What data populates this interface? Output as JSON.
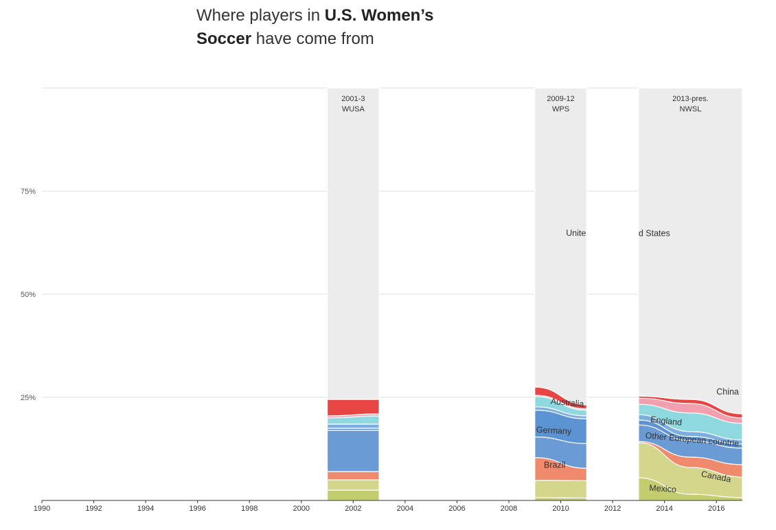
{
  "title": {
    "part1": "Where players in ",
    "bold1": "U.S. Women’s",
    "bold2": "Soccer",
    "part2": " have come from"
  },
  "chart_data": {
    "type": "area",
    "title": "Where players in U.S. Women’s Soccer have come from",
    "xlabel": "",
    "ylabel": "",
    "xlim": [
      1990,
      2017
    ],
    "ylim": [
      0,
      100
    ],
    "x_ticks": [
      "1990",
      "1992",
      "1994",
      "1996",
      "1998",
      "2000",
      "2002",
      "2004",
      "2006",
      "2008",
      "2010",
      "2012",
      "2014",
      "2016"
    ],
    "y_ticks": [
      {
        "value": 25,
        "label": "25%"
      },
      {
        "value": 50,
        "label": "50%"
      },
      {
        "value": 75,
        "label": "75%"
      }
    ],
    "eras": [
      {
        "start": 2001,
        "end": 2003,
        "years": "2001-3",
        "league": "WUSA"
      },
      {
        "start": 2009,
        "end": 2011,
        "years": "2009-12",
        "league": "WPS"
      },
      {
        "start": 2013,
        "end": 2017,
        "years": "2013-pres.",
        "league": "NWSL"
      }
    ],
    "series": [
      {
        "name": "Mexico",
        "color": "#c4cc70",
        "values": {
          "2001": 2.5,
          "2003": 2.5,
          "2009": 0.7,
          "2011": 0.6,
          "2013": 5.5,
          "2015": 1.5,
          "2017": 0.7
        }
      },
      {
        "name": "Canada",
        "color": "#d4d68c",
        "values": {
          "2001": 2.5,
          "2003": 2.5,
          "2009": 4.2,
          "2011": 4.2,
          "2013": 8.5,
          "2015": 6.5,
          "2017": 5.0
        }
      },
      {
        "name": "Brazil",
        "color": "#f08a6c",
        "values": {
          "2001": 2.0,
          "2003": 2.0,
          "2009": 5.5,
          "2011": 3.0,
          "2013": 0.3,
          "2015": 2.5,
          "2017": 3.0
        }
      },
      {
        "name": "Other European countries",
        "color": "#6a9bd4",
        "values": {
          "2001": 10.0,
          "2003": 10.0,
          "2009": 5.0,
          "2011": 6.0,
          "2013": 4.0,
          "2015": 4.0,
          "2017": 4.0
        }
      },
      {
        "name": "Germany",
        "color": "#5c93d2",
        "values": {
          "2001": 0.5,
          "2003": 0.5,
          "2009": 6.5,
          "2011": 6.0,
          "2013": 1.2,
          "2015": 1.0,
          "2017": 1.0
        }
      },
      {
        "name": "England",
        "color": "#7daee0",
        "values": {
          "2001": 1.0,
          "2003": 1.0,
          "2009": 0.8,
          "2011": 0.7,
          "2013": 1.3,
          "2015": 1.2,
          "2017": 1.0
        }
      },
      {
        "name": "Australia",
        "color": "#8ed8e0",
        "values": {
          "2001": 1.5,
          "2003": 2.0,
          "2009": 2.5,
          "2011": 1.4,
          "2013": 2.5,
          "2015": 4.5,
          "2017": 4.0
        }
      },
      {
        "name": "China",
        "color": "#f2a0b0",
        "values": {
          "2001": 0.5,
          "2003": 0.5,
          "2009": 0.3,
          "2011": 0.3,
          "2013": 1.5,
          "2015": 2.3,
          "2017": 1.3
        }
      },
      {
        "name": "",
        "color": "#e84545",
        "values": {
          "2001": 4.0,
          "2003": 3.5,
          "2009": 2.0,
          "2011": 1.0,
          "2013": 0.5,
          "2015": 1.0,
          "2017": 1.0
        }
      },
      {
        "name": "United States",
        "color": "#ececec",
        "values": {
          "2001": 75.5,
          "2003": 75.5,
          "2009": 72.5,
          "2011": 76.8,
          "2013": 74.7,
          "2015": 75.5,
          "2017": 79.0
        }
      }
    ],
    "labels": [
      {
        "text": "Mexico",
        "x": 2013.4,
        "y": 2.4,
        "rot": 4
      },
      {
        "text": "Canada",
        "x": 2015.4,
        "y": 5.8,
        "rot": 11
      },
      {
        "text": "Brazil",
        "x": 2009.35,
        "y": 7.9,
        "rot": 0
      },
      {
        "text": "Germany",
        "x": 2009.05,
        "y": 16.5,
        "rot": 3
      },
      {
        "text": "Other European countrie",
        "x": 2013.25,
        "y": 15.1,
        "rot": 5
      },
      {
        "text": "England",
        "x": 2013.45,
        "y": 19.0,
        "rot": 6
      },
      {
        "text": "Australia",
        "x": 2009.6,
        "y": 23.4,
        "rot": 5
      },
      {
        "text": "China",
        "x": 2016.0,
        "y": 25.7,
        "rot": 0
      },
      {
        "text": "Unite",
        "x": 2010.2,
        "y": 64.2,
        "rot": 1
      },
      {
        "text": "d States",
        "x": 2013.0,
        "y": 64.1,
        "rot": 0
      }
    ]
  }
}
